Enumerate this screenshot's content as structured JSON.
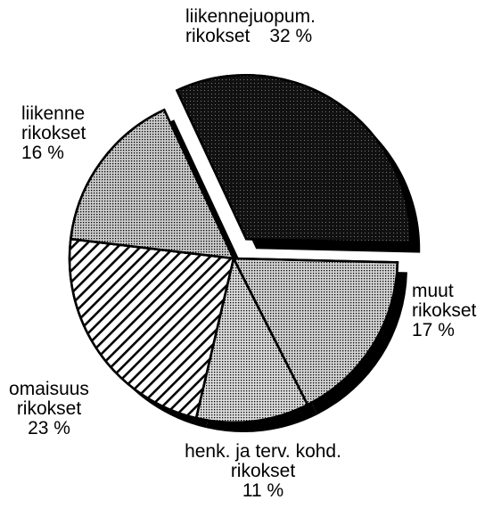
{
  "chart_data": {
    "type": "pie",
    "categories": [
      "liikennejuopum. rikokset",
      "muut rikokset",
      "henk. ja terv. kohd. rikokset",
      "omaisuus rikokset",
      "liikenne rikokset"
    ],
    "values": [
      32,
      17,
      11,
      23,
      16
    ],
    "value_labels": [
      "32 %",
      "17 %",
      "11 %",
      "23 %",
      "16 %"
    ],
    "colors": [
      "#111111",
      "#d4d4d4",
      "#dcdcdc",
      "#ffffff",
      "#cccccc"
    ],
    "hatch": [
      false,
      false,
      false,
      true,
      false
    ],
    "explode": [
      true,
      false,
      false,
      false,
      false
    ]
  }
}
